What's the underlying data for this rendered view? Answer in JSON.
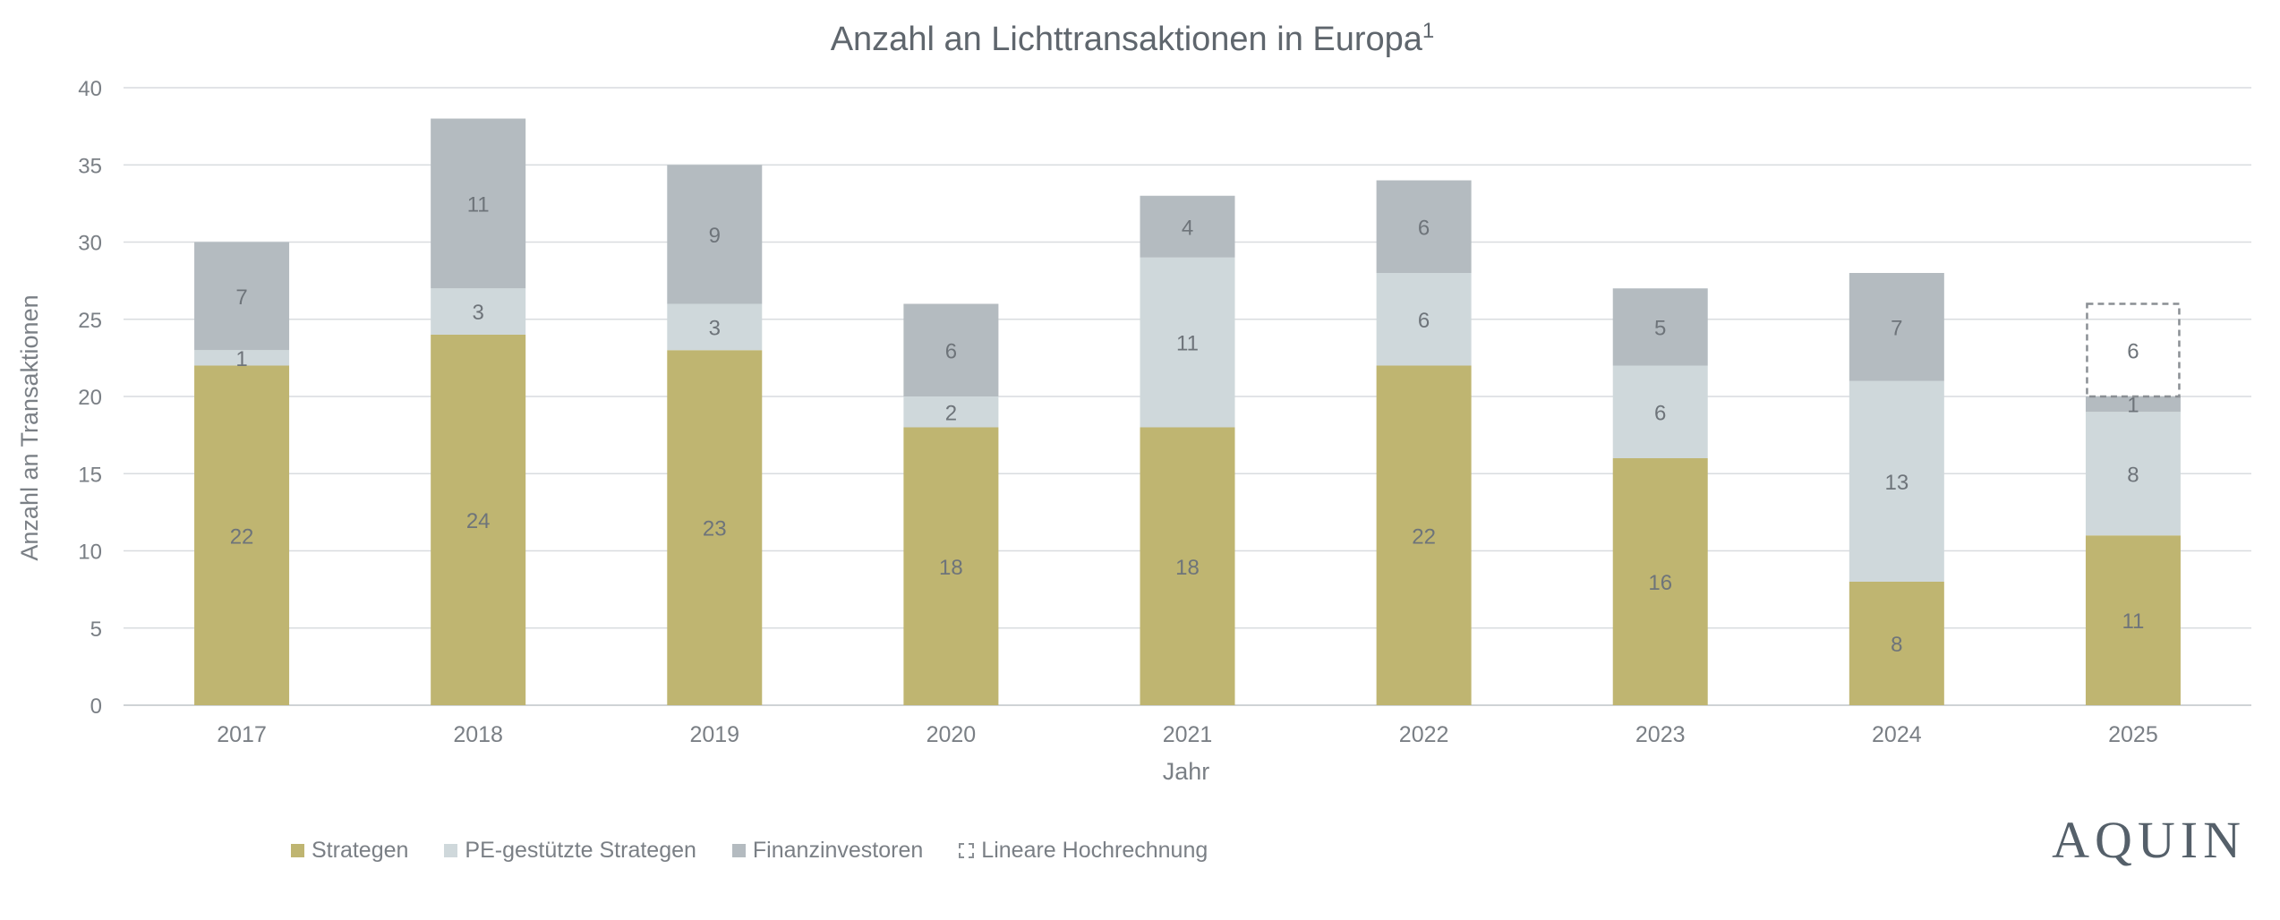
{
  "chart_data": {
    "type": "bar",
    "stacked": true,
    "title": "Anzahl an Lichttransaktionen in Europa",
    "title_superscript": "1",
    "xlabel": "Jahr",
    "ylabel": "Anzahl an Transaktionen",
    "ylim": [
      0,
      40
    ],
    "yticks": [
      0,
      5,
      10,
      15,
      20,
      25,
      30,
      35,
      40
    ],
    "grid": true,
    "legend_position": "bottom-left",
    "categories": [
      "2017",
      "2018",
      "2019",
      "2020",
      "2021",
      "2022",
      "2023",
      "2024",
      "2025"
    ],
    "series": [
      {
        "name": "Strategen",
        "color": "#bfb571",
        "values": [
          22,
          24,
          23,
          18,
          18,
          22,
          16,
          8,
          11
        ]
      },
      {
        "name": "PE-gestützte Strategen",
        "color": "#cfd8db",
        "values": [
          1,
          3,
          3,
          2,
          11,
          6,
          6,
          13,
          8
        ]
      },
      {
        "name": "Finanzinvestoren",
        "color": "#b4bbc0",
        "values": [
          7,
          11,
          9,
          6,
          4,
          6,
          5,
          7,
          1
        ]
      },
      {
        "name": "Lineare Hochrechnung",
        "color": "#8a8f94",
        "style": "dashed",
        "values": [
          0,
          0,
          0,
          0,
          0,
          0,
          0,
          0,
          6
        ]
      }
    ]
  },
  "legend": [
    {
      "label": "Strategen",
      "color": "#bfb571"
    },
    {
      "label": "PE-gestützte Strategen",
      "color": "#cfd8db"
    },
    {
      "label": "Finanzinvestoren",
      "color": "#b4bbc0"
    },
    {
      "label": "Lineare Hochrechnung",
      "color": "#8a8f94",
      "dashed": true
    }
  ],
  "brand": "AQUIN"
}
